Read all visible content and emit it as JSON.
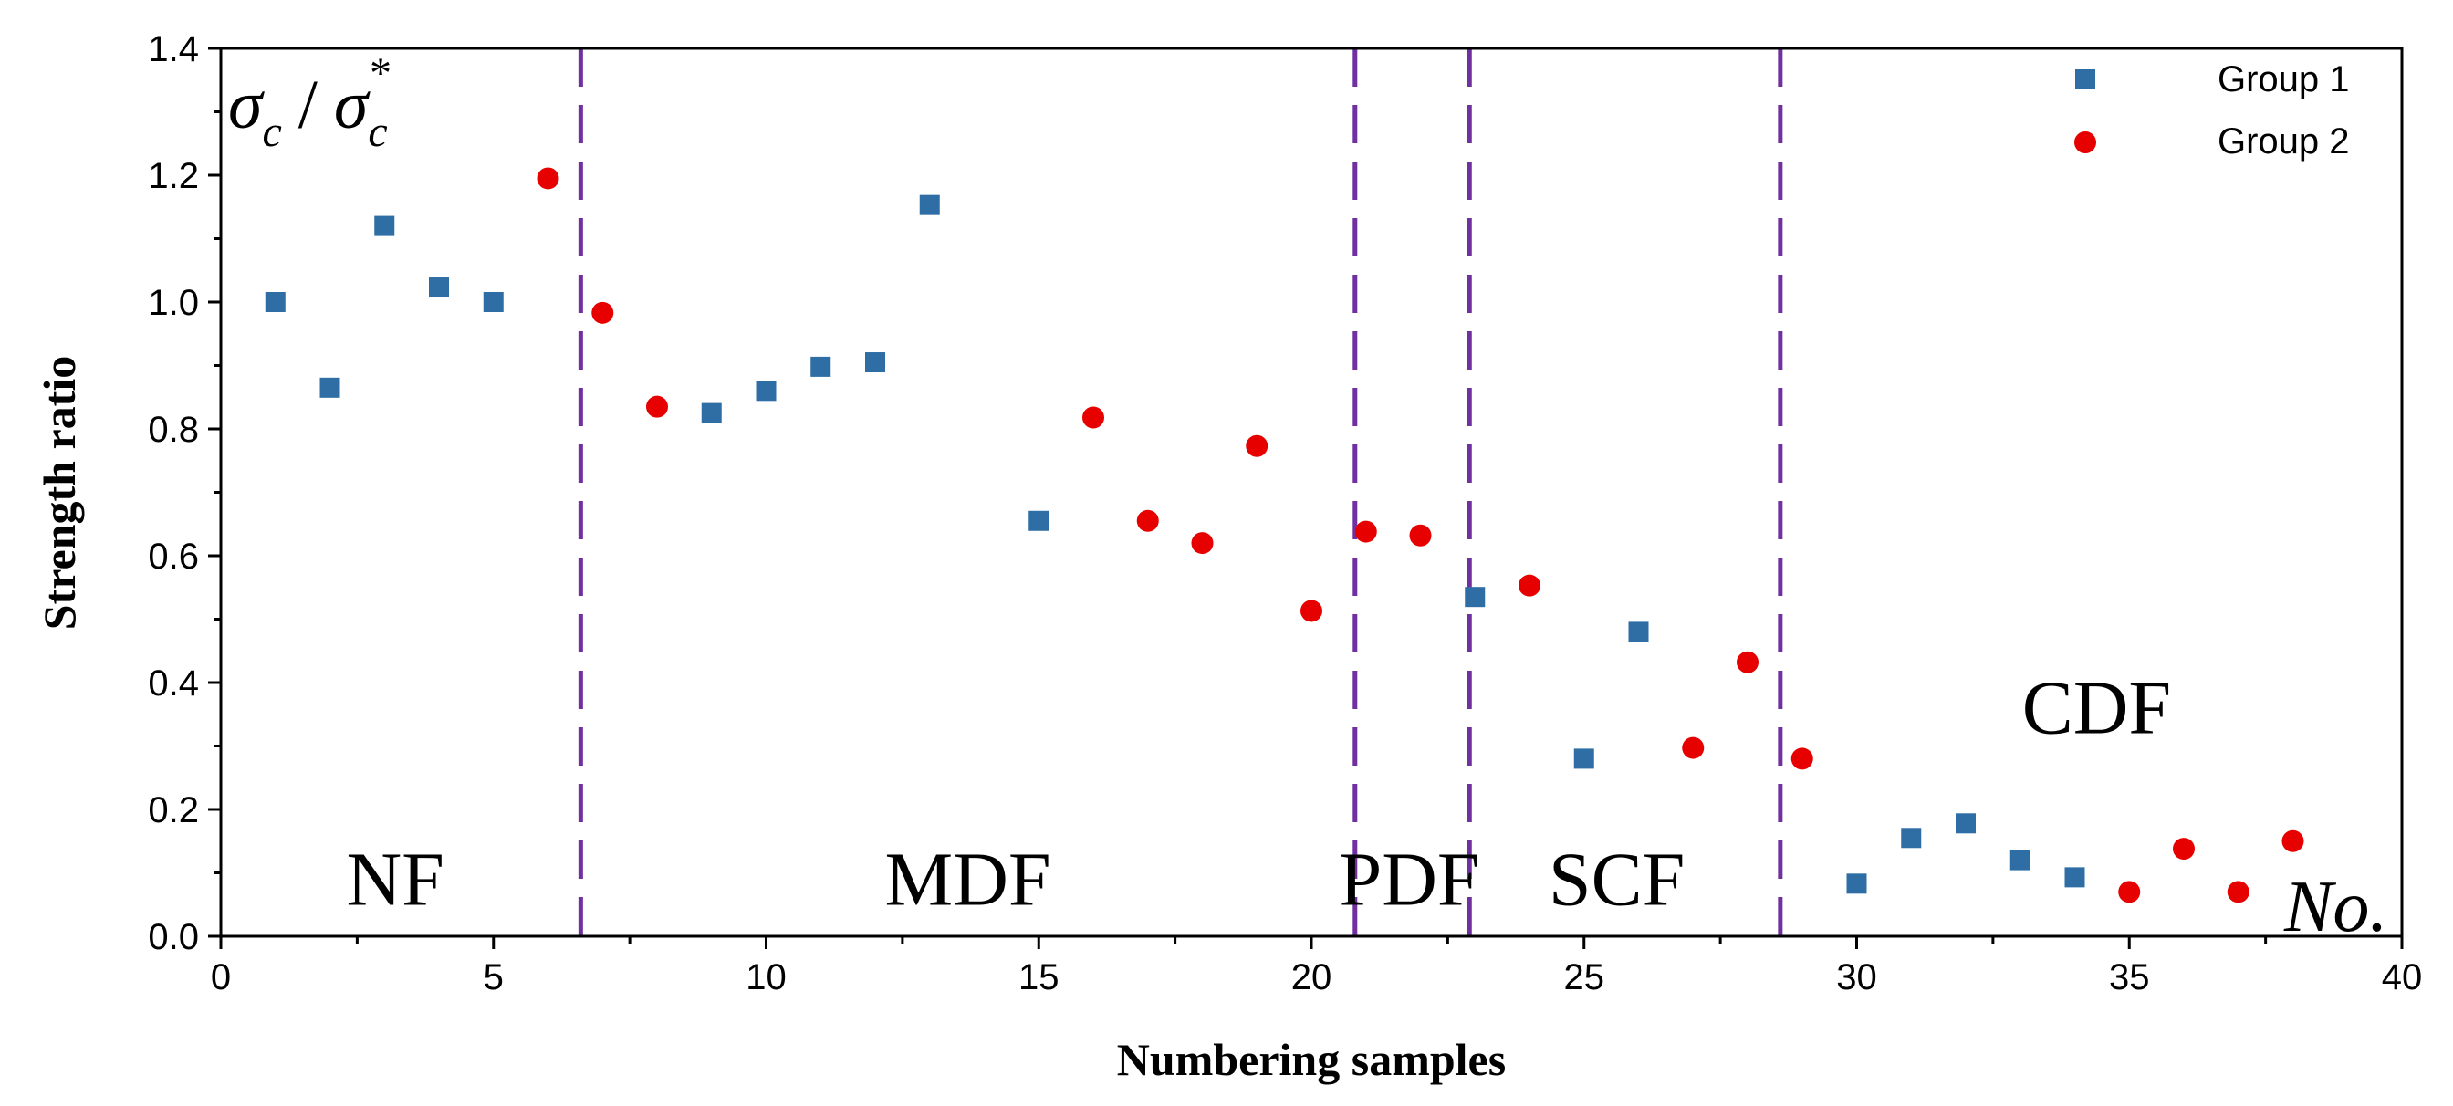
{
  "chart_data": {
    "type": "scatter",
    "xlabel": "Numbering samples",
    "ylabel": "Strength ratio",
    "xlim": [
      0,
      40
    ],
    "ylim": [
      0,
      1.4
    ],
    "xticks": [
      "0",
      "5",
      "10",
      "15",
      "20",
      "25",
      "30",
      "35",
      "40"
    ],
    "yticks": [
      "0.0",
      "0.2",
      "0.4",
      "0.6",
      "0.8",
      "1.0",
      "1.2",
      "1.4"
    ],
    "grid": false,
    "legend_position": "top-right",
    "y_annotation": {
      "sigma1": "σ",
      "sub1": "c",
      "slash": "/",
      "sigma2": "σ",
      "sub2": "c",
      "sup2": "*"
    },
    "x_annotation": "No.",
    "dividers": [
      6.6,
      20.8,
      22.9,
      28.6
    ],
    "regions": [
      {
        "label": "NF",
        "x": 3.2,
        "y": 0.05
      },
      {
        "label": "MDF",
        "x": 13.7,
        "y": 0.05
      },
      {
        "label": "PDF",
        "x": 21.8,
        "y": 0.05
      },
      {
        "label": "SCF",
        "x": 25.6,
        "y": 0.05
      },
      {
        "label": "CDF",
        "x": 34.4,
        "y": 0.32
      }
    ],
    "series": [
      {
        "name": "Group 1",
        "marker": "square",
        "color": "#2f6ea5",
        "x": [
          1,
          2,
          3,
          4,
          5,
          9,
          10,
          11,
          12,
          13,
          15,
          23,
          25,
          26,
          30,
          31,
          32,
          33,
          34
        ],
        "y": [
          1.0,
          0.865,
          1.12,
          1.023,
          1.0,
          0.825,
          0.86,
          0.898,
          0.905,
          1.153,
          0.655,
          0.535,
          0.28,
          0.48,
          0.083,
          0.155,
          0.178,
          0.12,
          0.093
        ]
      },
      {
        "name": "Group 2",
        "marker": "circle",
        "color": "#e60000",
        "x": [
          6,
          7,
          8,
          16,
          17,
          18,
          19,
          20,
          21,
          22,
          24,
          27,
          28,
          29,
          35,
          36,
          37,
          38
        ],
        "y": [
          1.195,
          0.983,
          0.835,
          0.818,
          0.655,
          0.62,
          0.773,
          0.513,
          0.638,
          0.632,
          0.553,
          0.297,
          0.432,
          0.28,
          0.07,
          0.138,
          0.07,
          0.15
        ]
      }
    ]
  }
}
